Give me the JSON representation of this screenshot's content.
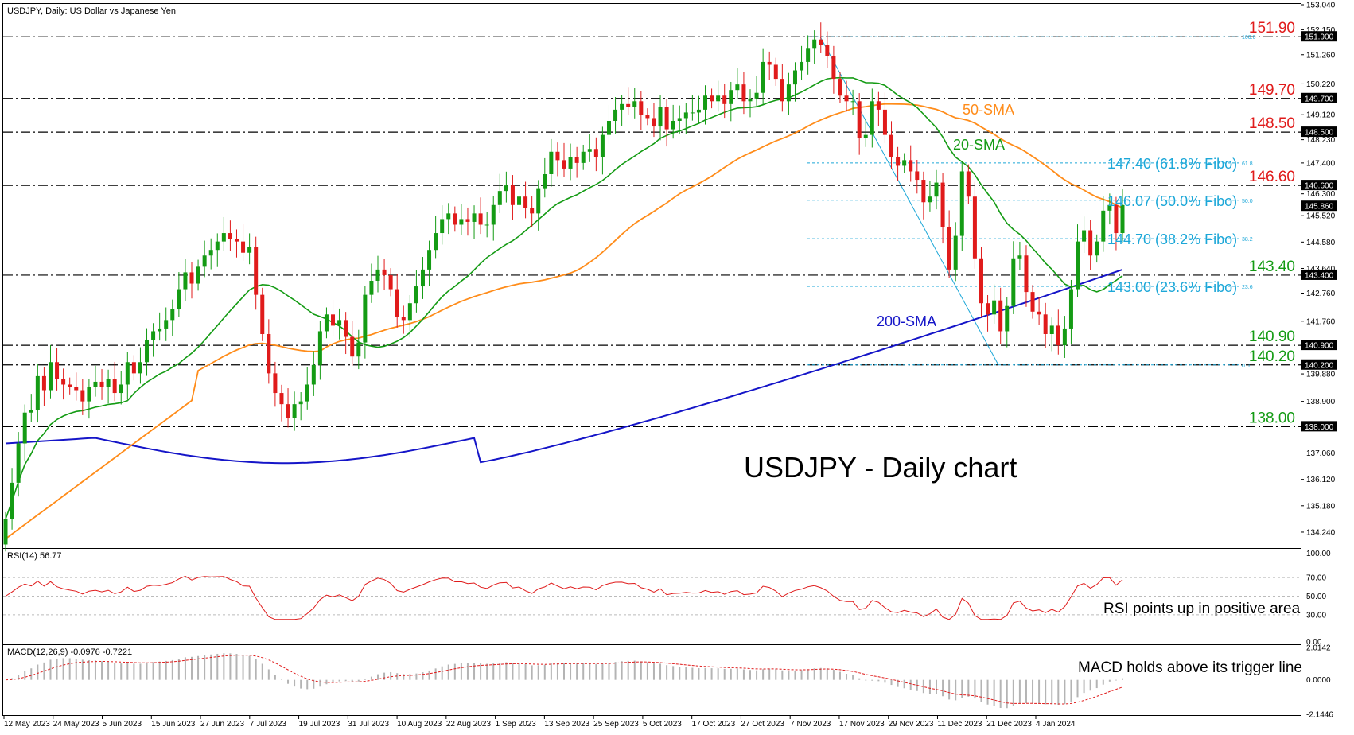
{
  "header": "USDJPY, Daily:  US Dollar vs Japanese Yen",
  "chart_title": "USDJPY - Daily chart",
  "colors": {
    "candle_up": "#149b14",
    "candle_down": "#e01b1b",
    "sma20": "#149b14",
    "sma50": "#ff8c1a",
    "sma200": "#1515c8",
    "level_red": "#e01b1b",
    "level_green": "#149b14",
    "fibo": "#1ca7d8",
    "rsi": "#e01b1b",
    "macd": "#b4b4b4"
  },
  "price_axis": [
    "153.040",
    "152.150",
    "151.260",
    "150.220",
    "149.120",
    "148.230",
    "147.400",
    "146.300",
    "145.520",
    "144.580",
    "143.640",
    "142.760",
    "141.760",
    "140.900",
    "139.880",
    "138.900",
    "138.000",
    "137.060",
    "136.120",
    "135.180",
    "134.240"
  ],
  "date_labels": [
    "12 May 2023",
    "24 May 2023",
    "5 Jun 2023",
    "15 Jun 2023",
    "27 Jun 2023",
    "7 Jul 2023",
    "19 Jul 2023",
    "31 Jul 2023",
    "10 Aug 2023",
    "22 Aug 2023",
    "1 Sep 2023",
    "13 Sep 2023",
    "25 Sep 2023",
    "5 Oct 2023",
    "17 Oct 2023",
    "27 Oct 2023",
    "7 Nov 2023",
    "17 Nov 2023",
    "29 Nov 2023",
    "11 Dec 2023",
    "21 Dec 2023",
    "4 Jan 2024"
  ],
  "levels": [
    {
      "label": "151.90",
      "value": 151.9,
      "tag": "151.900",
      "color": "red"
    },
    {
      "label": "149.70",
      "value": 149.7,
      "tag": "149.700",
      "color": "red"
    },
    {
      "label": "148.50",
      "value": 148.5,
      "tag": "148.500",
      "color": "red"
    },
    {
      "label": "146.60",
      "value": 146.6,
      "tag": "146.600",
      "color": "red"
    },
    {
      "label": "143.40",
      "value": 143.4,
      "tag": "143.400",
      "color": "green"
    },
    {
      "label": "140.90",
      "value": 140.9,
      "tag": "140.900",
      "color": "green"
    },
    {
      "label": "140.20",
      "value": 140.2,
      "tag": "140.200",
      "color": "green"
    },
    {
      "label": "138.00",
      "value": 138.0,
      "tag": "138.000",
      "color": "green"
    }
  ],
  "current_price_tag": "145.860",
  "fibo": [
    {
      "label": "147.40 (61.8% Fibo)",
      "value": 147.4,
      "small": "61.8"
    },
    {
      "label": "146.07 (50.0% Fibo)",
      "value": 146.07,
      "small": "50.0"
    },
    {
      "label": "144.70 (38.2% Fibo)",
      "value": 144.7,
      "small": "38.2"
    },
    {
      "label": "143.00 (23.6% Fibo)",
      "value": 143.0,
      "small": "23.6"
    }
  ],
  "fibo_extremes": [
    {
      "value": 151.9,
      "small": "100.0"
    },
    {
      "value": 140.2,
      "small": "0.0"
    }
  ],
  "sma_labels": {
    "sma50": "50-SMA",
    "sma20": "20-SMA",
    "sma200": "200-SMA"
  },
  "rsi": {
    "header": "RSI(14) 56.77",
    "axis": [
      "100.00",
      "70.00",
      "50.00",
      "30.00",
      "0.00"
    ],
    "note": "RSI points up in positive area"
  },
  "macd": {
    "header": "MACD(12,26,9) -0.0976 -0.7221",
    "axis": [
      "2.0142",
      "0.0000",
      "-2.1446"
    ],
    "note": "MACD holds above its trigger line"
  },
  "chart_data": {
    "type": "candlestick",
    "symbol": "USDJPY",
    "timeframe": "Daily",
    "ylim": [
      133.7,
      153.04
    ],
    "x_range": [
      "12 May 2023",
      "11 Jan 2024"
    ],
    "closes": [
      134.7,
      136.0,
      137.4,
      138.5,
      138.6,
      139.8,
      139.3,
      140.3,
      139.7,
      139.5,
      139.4,
      139.3,
      138.9,
      139.4,
      139.6,
      139.4,
      139.7,
      139.2,
      139.5,
      140.3,
      139.9,
      140.3,
      141.1,
      141.4,
      141.5,
      141.8,
      142.2,
      142.9,
      143.5,
      143.1,
      143.7,
      144.1,
      144.3,
      144.6,
      144.9,
      144.7,
      144.6,
      144.2,
      144.4,
      142.7,
      141.3,
      139.9,
      139.2,
      138.8,
      138.3,
      138.8,
      138.9,
      139.5,
      140.2,
      141.4,
      142.0,
      141.6,
      141.8,
      141.2,
      140.5,
      141.0,
      142.7,
      143.2,
      143.6,
      143.4,
      142.9,
      141.9,
      141.8,
      142.4,
      143.0,
      143.6,
      144.3,
      144.9,
      145.4,
      145.6,
      145.2,
      145.4,
      145.3,
      145.6,
      145.2,
      145.2,
      145.9,
      146.4,
      146.6,
      145.9,
      146.2,
      145.8,
      145.6,
      146.5,
      147.0,
      147.8,
      147.5,
      147.2,
      147.6,
      147.4,
      147.8,
      147.9,
      147.6,
      148.4,
      148.9,
      149.3,
      149.5,
      149.4,
      149.6,
      149.1,
      149.0,
      148.7,
      149.4,
      148.6,
      148.9,
      149.0,
      149.2,
      149.2,
      149.3,
      149.8,
      149.6,
      149.8,
      149.5,
      150.0,
      150.2,
      149.6,
      149.7,
      149.9,
      151.0,
      150.9,
      150.4,
      149.6,
      150.2,
      150.7,
      151.0,
      151.5,
      151.8,
      151.6,
      151.2,
      150.4,
      149.8,
      149.6,
      149.6,
      148.3,
      148.4,
      149.6,
      149.3,
      148.4,
      147.6,
      147.3,
      147.5,
      147.1,
      146.8,
      146.0,
      146.2,
      146.7,
      145.1,
      143.6,
      144.8,
      147.1,
      146.2,
      144.0,
      142.4,
      142.0,
      142.5,
      141.4,
      142.3,
      144.0,
      144.1,
      142.8,
      142.1,
      142.0,
      141.3,
      141.6,
      140.9,
      141.5,
      142.9,
      144.6,
      145.0,
      144.1,
      144.6,
      145.7,
      145.9,
      144.9,
      145.9
    ]
  }
}
